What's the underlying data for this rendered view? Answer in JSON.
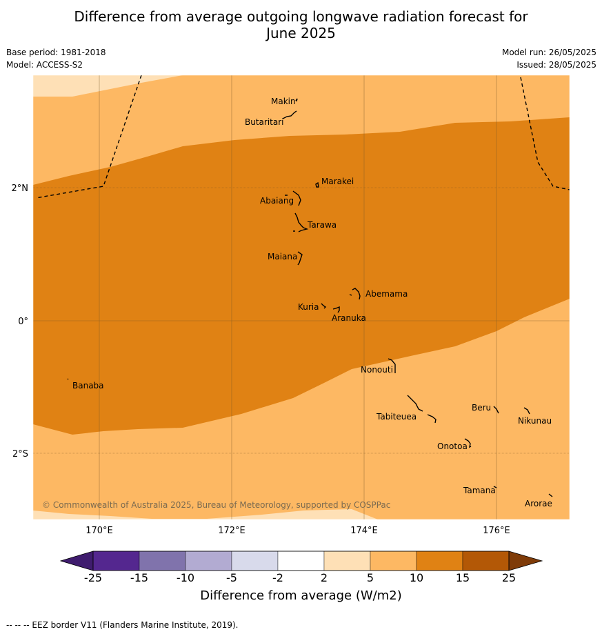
{
  "title_line1": "Difference from average outgoing longwave radiation forecast for",
  "title_line2": "June 2025",
  "base_period": "Base period: 1981-2018",
  "model": "Model: ACCESS-S2",
  "model_run": "Model run: 26/05/2025",
  "issued": "Issued: 28/05/2025",
  "map": {
    "lon_range": [
      169,
      177.1
    ],
    "lat_range": [
      -3.0,
      3.3
    ],
    "lon_ticks": [
      {
        "v": 170,
        "label": "170°E"
      },
      {
        "v": 172,
        "label": "172°E"
      },
      {
        "v": 174,
        "label": "174°E"
      },
      {
        "v": 176,
        "label": "176°E"
      }
    ],
    "lat_ticks": [
      {
        "v": 2,
        "label": "2°N"
      },
      {
        "v": 0,
        "label": "0°"
      },
      {
        "v": -2,
        "label": "2°S"
      }
    ],
    "copyright": "© Commonwealth of Australia 2025, Bureau of Meteorology, supported by COSPPac",
    "islands": [
      {
        "name": "Makin",
        "lon": 173.0,
        "lat": 3.35
      },
      {
        "name": "Butaritari",
        "lon": 172.85,
        "lat": 3.1
      },
      {
        "name": "Marakei",
        "lon": 173.3,
        "lat": 2.0
      },
      {
        "name": "Abaiang",
        "lon": 172.95,
        "lat": 1.8
      },
      {
        "name": "Tarawa",
        "lon": 173.1,
        "lat": 1.4
      },
      {
        "name": "Maiana",
        "lon": 173.0,
        "lat": 0.95
      },
      {
        "name": "Abemama",
        "lon": 173.9,
        "lat": 0.4
      },
      {
        "name": "Kuria",
        "lon": 173.4,
        "lat": 0.22
      },
      {
        "name": "Aranuka",
        "lon": 173.6,
        "lat": 0.15
      },
      {
        "name": "Nonouti",
        "lon": 174.4,
        "lat": -0.65
      },
      {
        "name": "Banaba",
        "lon": 169.55,
        "lat": -0.87
      },
      {
        "name": "Tabiteuea",
        "lon": 174.9,
        "lat": -1.3
      },
      {
        "name": "Beru",
        "lon": 176.0,
        "lat": -1.35
      },
      {
        "name": "Nikunau",
        "lon": 176.45,
        "lat": -1.35
      },
      {
        "name": "Onotoa",
        "lon": 175.55,
        "lat": -1.8
      },
      {
        "name": "Tamana",
        "lon": 175.97,
        "lat": -2.5
      },
      {
        "name": "Arorae",
        "lon": 176.8,
        "lat": -2.63
      }
    ]
  },
  "colorbar": {
    "title": "Difference from average (W/m2)",
    "labels": [
      "-25",
      "-15",
      "-10",
      "-5",
      "-2",
      "2",
      "5",
      "10",
      "15",
      "25"
    ],
    "colors": [
      "#3f1c6e",
      "#54278f",
      "#8073ac",
      "#b2abd2",
      "#d8daeb",
      "#ffffff",
      "#fee0b6",
      "#fdb863",
      "#e08214",
      "#b35806",
      "#7f3b08"
    ]
  },
  "footnote": "--  --  -- EEZ border V11 (Flanders Marine Institute, 2019)."
}
